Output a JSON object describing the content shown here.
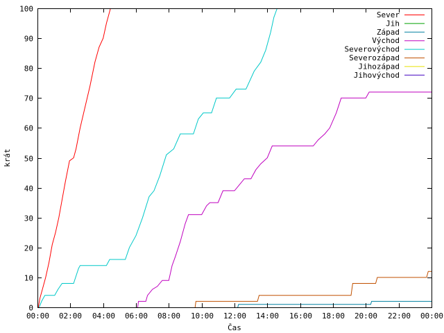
{
  "chart_data": {
    "type": "line",
    "title": "",
    "xlabel": "Čas",
    "ylabel": "krát",
    "xlim": [
      0,
      24
    ],
    "ylim": [
      0,
      100
    ],
    "grid": false,
    "legend_position": "top-right",
    "x_ticks": [
      {
        "x": 0,
        "label": "00:00"
      },
      {
        "x": 2,
        "label": "02:00"
      },
      {
        "x": 4,
        "label": "04:00"
      },
      {
        "x": 6,
        "label": "06:00"
      },
      {
        "x": 8,
        "label": "08:00"
      },
      {
        "x": 10,
        "label": "10:00"
      },
      {
        "x": 12,
        "label": "12:00"
      },
      {
        "x": 14,
        "label": "14:00"
      },
      {
        "x": 16,
        "label": "16:00"
      },
      {
        "x": 18,
        "label": "18:00"
      },
      {
        "x": 20,
        "label": "20:00"
      },
      {
        "x": 22,
        "label": "22:00"
      },
      {
        "x": 24,
        "label": "00:00"
      }
    ],
    "y_ticks": [
      {
        "y": 0,
        "label": "0"
      },
      {
        "y": 10,
        "label": "10"
      },
      {
        "y": 20,
        "label": "20"
      },
      {
        "y": 30,
        "label": "30"
      },
      {
        "y": 40,
        "label": "40"
      },
      {
        "y": 50,
        "label": "50"
      },
      {
        "y": 60,
        "label": "60"
      },
      {
        "y": 70,
        "label": "70"
      },
      {
        "y": 80,
        "label": "80"
      },
      {
        "y": 90,
        "label": "90"
      },
      {
        "y": 100,
        "label": "100"
      }
    ],
    "series": [
      {
        "name": "Sever",
        "color": "#ff0000",
        "points": [
          [
            0.05,
            0
          ],
          [
            0.15,
            3
          ],
          [
            0.3,
            6
          ],
          [
            0.5,
            10
          ],
          [
            0.7,
            15
          ],
          [
            0.9,
            21
          ],
          [
            1.1,
            25
          ],
          [
            1.3,
            30
          ],
          [
            1.5,
            36
          ],
          [
            1.7,
            42
          ],
          [
            1.95,
            49
          ],
          [
            2.2,
            50
          ],
          [
            2.35,
            53
          ],
          [
            2.6,
            60
          ],
          [
            2.9,
            67
          ],
          [
            3.2,
            74
          ],
          [
            3.5,
            82
          ],
          [
            3.75,
            87
          ],
          [
            4.0,
            90
          ],
          [
            4.2,
            95
          ],
          [
            4.45,
            100
          ]
        ]
      },
      {
        "name": "Jih",
        "color": "#00a000",
        "points": []
      },
      {
        "name": "Západ",
        "color": "#0080a0",
        "points": [
          [
            12.2,
            0
          ],
          [
            12.25,
            1
          ],
          [
            20.3,
            1
          ],
          [
            20.35,
            2
          ],
          [
            24,
            2
          ]
        ]
      },
      {
        "name": "Východ",
        "color": "#bf00bf",
        "points": [
          [
            6.1,
            0
          ],
          [
            6.15,
            2
          ],
          [
            6.6,
            2
          ],
          [
            6.7,
            4
          ],
          [
            7.0,
            6
          ],
          [
            7.3,
            7
          ],
          [
            7.6,
            9
          ],
          [
            8.0,
            9
          ],
          [
            8.2,
            14
          ],
          [
            8.4,
            17
          ],
          [
            8.7,
            22
          ],
          [
            9.0,
            28
          ],
          [
            9.2,
            31
          ],
          [
            10.0,
            31
          ],
          [
            10.3,
            34
          ],
          [
            10.5,
            35
          ],
          [
            11.0,
            35
          ],
          [
            11.3,
            39
          ],
          [
            12.0,
            39
          ],
          [
            12.3,
            41
          ],
          [
            12.6,
            43
          ],
          [
            13.0,
            43
          ],
          [
            13.3,
            46
          ],
          [
            13.6,
            48
          ],
          [
            14.0,
            50
          ],
          [
            14.3,
            54
          ],
          [
            16.8,
            54
          ],
          [
            17.1,
            56
          ],
          [
            17.5,
            58
          ],
          [
            17.8,
            60
          ],
          [
            18.2,
            65
          ],
          [
            18.5,
            70
          ],
          [
            20.0,
            70
          ],
          [
            20.2,
            72
          ],
          [
            24,
            72
          ]
        ]
      },
      {
        "name": "Severovýchod",
        "color": "#00c8c8",
        "points": [
          [
            0.1,
            0
          ],
          [
            0.25,
            2
          ],
          [
            0.45,
            4
          ],
          [
            1.05,
            4
          ],
          [
            1.25,
            6
          ],
          [
            1.5,
            8
          ],
          [
            2.2,
            8
          ],
          [
            2.5,
            13
          ],
          [
            2.6,
            14
          ],
          [
            4.2,
            14
          ],
          [
            4.4,
            16
          ],
          [
            5.35,
            16
          ],
          [
            5.6,
            20
          ],
          [
            6.0,
            24
          ],
          [
            6.4,
            30
          ],
          [
            6.8,
            37
          ],
          [
            7.1,
            39
          ],
          [
            7.45,
            44
          ],
          [
            7.85,
            51
          ],
          [
            8.3,
            53
          ],
          [
            8.7,
            58
          ],
          [
            9.5,
            58
          ],
          [
            9.8,
            63
          ],
          [
            10.1,
            65
          ],
          [
            10.6,
            65
          ],
          [
            10.9,
            70
          ],
          [
            11.7,
            70
          ],
          [
            12.1,
            73
          ],
          [
            12.7,
            73
          ],
          [
            13.2,
            79
          ],
          [
            13.6,
            82
          ],
          [
            13.9,
            86
          ],
          [
            14.2,
            92
          ],
          [
            14.4,
            97
          ],
          [
            14.6,
            100
          ]
        ]
      },
      {
        "name": "Severozápad",
        "color": "#c05000",
        "points": [
          [
            9.6,
            0
          ],
          [
            9.65,
            2
          ],
          [
            13.4,
            2
          ],
          [
            13.5,
            4
          ],
          [
            19.1,
            4
          ],
          [
            19.2,
            8
          ],
          [
            20.6,
            8
          ],
          [
            20.7,
            10
          ],
          [
            23.7,
            10
          ],
          [
            23.8,
            12
          ],
          [
            24,
            12
          ]
        ]
      },
      {
        "name": "Jihozápad",
        "color": "#e8e000",
        "points": []
      },
      {
        "name": "Jihovýchod",
        "color": "#4000c0",
        "points": []
      }
    ]
  }
}
